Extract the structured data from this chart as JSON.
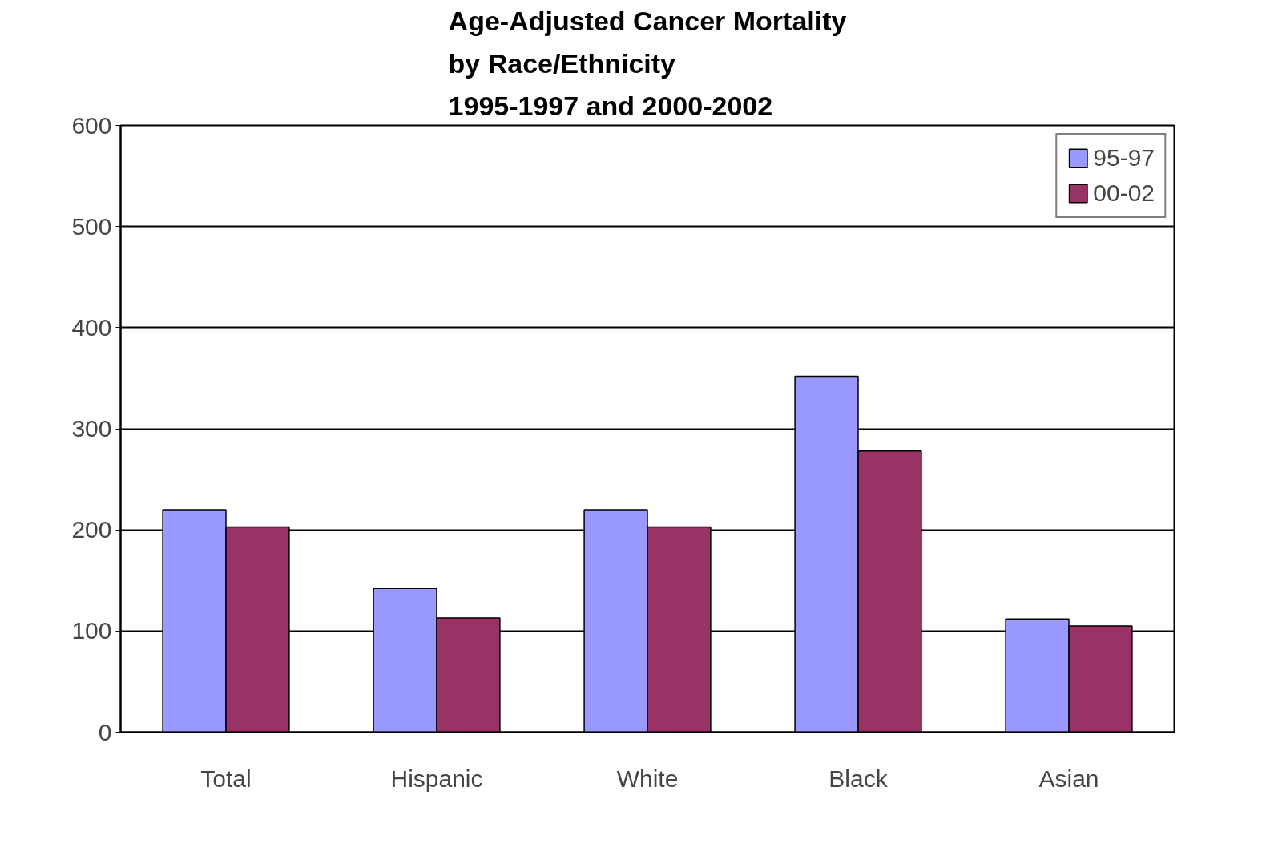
{
  "chart_data": {
    "type": "bar",
    "title": "Age-Adjusted Cancer Mortality\nby Race/Ethnicity\n1995-1997 and 2000-2002",
    "categories": [
      "Total",
      "Hispanic",
      "White",
      "Black",
      "Asian"
    ],
    "series": [
      {
        "name": "95-97",
        "color": "#9999ff",
        "values": [
          220,
          142,
          220,
          352,
          112
        ]
      },
      {
        "name": "00-02",
        "color": "#993366",
        "values": [
          203,
          113,
          203,
          278,
          105
        ]
      }
    ],
    "ylim": [
      0,
      600
    ],
    "yticks": [
      0,
      100,
      200,
      300,
      400,
      500,
      600
    ],
    "grid": "y",
    "legend": "top right"
  }
}
